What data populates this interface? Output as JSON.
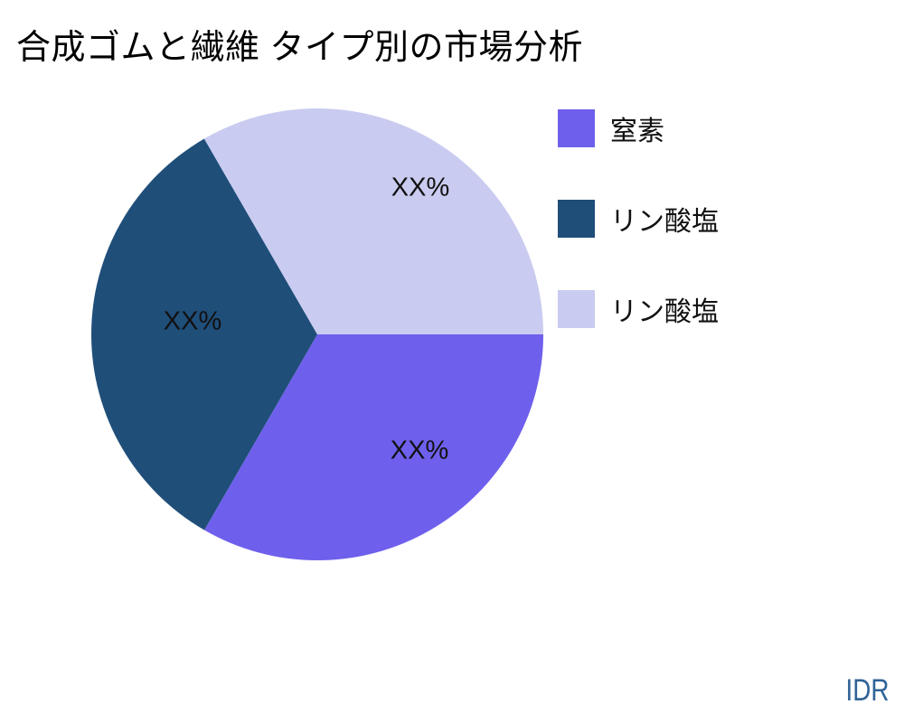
{
  "title": "合成ゴムと繊維 タイプ別の市場分析",
  "watermark": "IDR",
  "colors": {
    "background": "#ffffff",
    "title_text": "#000000",
    "slice_label_text": "#111111",
    "watermark_text": "#2F6396"
  },
  "chart_data": {
    "type": "pie",
    "title": "合成ゴムと繊維 タイプ別の市場分析",
    "start_angle_deg": 0,
    "direction": "clockwise",
    "legend_position": "right",
    "data_labels": "percent-placeholder",
    "segments": [
      {
        "id": "nitrogen",
        "label": "窒素",
        "value": 33.33,
        "display_value": "XX%",
        "color": "#6E60EC"
      },
      {
        "id": "phosphate-dark",
        "label": "リン酸塩",
        "value": 33.33,
        "display_value": "XX%",
        "color": "#1F4E79"
      },
      {
        "id": "phosphate-light",
        "label": "リン酸塩",
        "value": 33.34,
        "display_value": "XX%",
        "color": "#C9CBF0"
      }
    ]
  }
}
